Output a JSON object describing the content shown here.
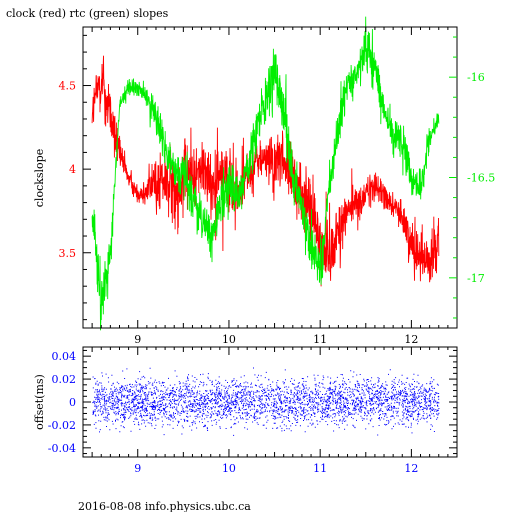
{
  "page": {
    "title": "clock (red) rtc (green) slopes",
    "footer": "2016-08-08 info.physics.ubc.ca"
  },
  "colors": {
    "clock": "#ff0000",
    "rtc": "#00ee00",
    "offset": "#0000ff",
    "axis": "#000000"
  },
  "chart_data": [
    {
      "type": "line",
      "title": "clock (red) rtc (green) slopes",
      "xlabel": "",
      "ylabel": "clockslope",
      "xlim": [
        8.4,
        12.5
      ],
      "ylim_left": [
        3.05,
        4.85
      ],
      "ylim_right": [
        -17.25,
        -15.75
      ],
      "x_ticks": [
        9,
        10,
        11,
        12
      ],
      "x_tick_labels": [
        "9",
        "10",
        "11",
        "12"
      ],
      "y_ticks_left": [
        3.5,
        4,
        4.5
      ],
      "y_tick_labels_left": [
        "3.5",
        "4",
        "4.5"
      ],
      "y_ticks_right": [
        -17,
        -16.5,
        -16
      ],
      "y_tick_labels_right": [
        "-17",
        "-16.5",
        "-16"
      ],
      "grid": false,
      "series": [
        {
          "name": "clock",
          "axis": "left",
          "x": [
            8.5,
            8.6,
            8.7,
            8.8,
            8.9,
            9.0,
            9.1,
            9.2,
            9.3,
            9.4,
            9.5,
            9.6,
            9.7,
            9.8,
            9.9,
            10.0,
            10.1,
            10.2,
            10.3,
            10.4,
            10.5,
            10.6,
            10.7,
            10.8,
            10.9,
            11.0,
            11.1,
            11.2,
            11.3,
            11.4,
            11.5,
            11.6,
            11.7,
            11.8,
            11.9,
            12.0,
            12.1,
            12.2,
            12.3
          ],
          "values": [
            4.35,
            4.55,
            4.3,
            4.1,
            3.95,
            3.85,
            3.88,
            3.92,
            3.92,
            3.9,
            3.95,
            3.95,
            4.0,
            3.9,
            4.02,
            3.9,
            3.85,
            3.95,
            4.05,
            4.05,
            4.02,
            4.05,
            3.95,
            3.85,
            3.75,
            3.55,
            3.5,
            3.65,
            3.75,
            3.8,
            3.85,
            3.9,
            3.85,
            3.78,
            3.72,
            3.55,
            3.5,
            3.45,
            3.6
          ],
          "noise": [
            0.1,
            0.18,
            0.12,
            0.1,
            0.05,
            0.05,
            0.08,
            0.15,
            0.18,
            0.2,
            0.2,
            0.15,
            0.15,
            0.2,
            0.2,
            0.18,
            0.15,
            0.12,
            0.1,
            0.12,
            0.15,
            0.15,
            0.12,
            0.15,
            0.18,
            0.2,
            0.18,
            0.15,
            0.12,
            0.1,
            0.08,
            0.08,
            0.08,
            0.06,
            0.1,
            0.12,
            0.15,
            0.15,
            0.12
          ]
        },
        {
          "name": "rtc",
          "axis": "right",
          "x": [
            8.5,
            8.6,
            8.7,
            8.8,
            8.9,
            9.0,
            9.1,
            9.2,
            9.3,
            9.4,
            9.5,
            9.6,
            9.7,
            9.8,
            9.9,
            10.0,
            10.1,
            10.2,
            10.3,
            10.4,
            10.5,
            10.6,
            10.7,
            10.8,
            10.9,
            11.0,
            11.1,
            11.2,
            11.3,
            11.4,
            11.5,
            11.6,
            11.7,
            11.8,
            11.9,
            12.0,
            12.1,
            12.2,
            12.3
          ],
          "values": [
            -16.7,
            -17.1,
            -16.9,
            -16.15,
            -16.05,
            -16.05,
            -16.1,
            -16.2,
            -16.35,
            -16.5,
            -16.45,
            -16.6,
            -16.7,
            -16.8,
            -16.65,
            -16.55,
            -16.6,
            -16.45,
            -16.25,
            -16.15,
            -15.95,
            -16.15,
            -16.5,
            -16.65,
            -16.85,
            -16.95,
            -16.55,
            -16.25,
            -16.05,
            -16.0,
            -15.85,
            -15.95,
            -16.15,
            -16.3,
            -16.3,
            -16.5,
            -16.55,
            -16.3,
            -16.2
          ],
          "noise": [
            0.1,
            0.12,
            0.08,
            0.04,
            0.04,
            0.04,
            0.05,
            0.08,
            0.1,
            0.1,
            0.1,
            0.1,
            0.1,
            0.1,
            0.1,
            0.1,
            0.08,
            0.08,
            0.1,
            0.12,
            0.15,
            0.12,
            0.1,
            0.1,
            0.1,
            0.1,
            0.1,
            0.1,
            0.08,
            0.08,
            0.1,
            0.1,
            0.1,
            0.08,
            0.08,
            0.08,
            0.08,
            0.06,
            0.04
          ]
        }
      ]
    },
    {
      "type": "scatter",
      "title": "",
      "xlabel": "",
      "ylabel": "offset(ms)",
      "xlim": [
        8.4,
        12.5
      ],
      "ylim": [
        -0.048,
        0.048
      ],
      "x_ticks": [
        9,
        10,
        11,
        12
      ],
      "x_tick_labels": [
        "9",
        "10",
        "11",
        "12"
      ],
      "y_ticks": [
        -0.04,
        -0.02,
        0,
        0.02,
        0.04
      ],
      "y_tick_labels": [
        "-0.04",
        "-0.02",
        "0",
        "0.02",
        "0.04"
      ],
      "grid": false,
      "series": [
        {
          "name": "offset",
          "x_range": [
            8.5,
            12.3
          ],
          "center": 0.0,
          "spread": 0.01,
          "count": 3600
        }
      ]
    }
  ]
}
